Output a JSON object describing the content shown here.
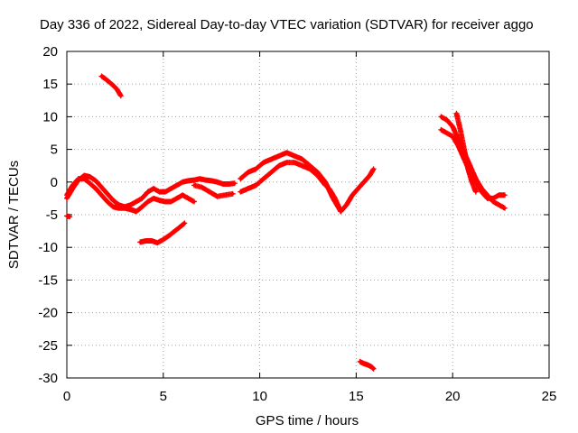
{
  "chart_data": {
    "type": "scatter",
    "title": "Day 336 of 2022, Sidereal Day-to-day VTEC variation (SDTVAR) for receiver aggo",
    "xlabel": "GPS time / hours",
    "ylabel": "SDTVAR / TECUs",
    "xlim": [
      0,
      25
    ],
    "ylim": [
      -30,
      20
    ],
    "grid": true,
    "x_ticks": [
      "0",
      "5",
      "10",
      "15",
      "20",
      "25"
    ],
    "y_ticks": [
      "20",
      "15",
      "10",
      "5",
      "0",
      "-5",
      "-10",
      "-15",
      "-20",
      "-25",
      "-30"
    ],
    "marker": "+",
    "color": "#ff0000",
    "series": [
      {
        "name": "arc-main-upper",
        "x": [
          0.0,
          0.3,
          0.6,
          0.9,
          1.2,
          1.5,
          1.8,
          2.1,
          2.4,
          2.7,
          3.0,
          3.3,
          3.6,
          3.9,
          4.2,
          4.5,
          4.8,
          5.1,
          5.4,
          5.7,
          6.0,
          6.3,
          6.6,
          6.9,
          7.2,
          7.5,
          7.8,
          8.1,
          8.4,
          8.7
        ],
        "y": [
          -2.5,
          -1.0,
          0.3,
          1.0,
          0.8,
          0.2,
          -0.8,
          -1.8,
          -2.8,
          -3.5,
          -3.8,
          -3.5,
          -3.0,
          -2.5,
          -1.5,
          -1.0,
          -1.5,
          -1.5,
          -1.0,
          -0.5,
          0.0,
          0.2,
          0.3,
          0.5,
          0.3,
          0.2,
          0.0,
          -0.3,
          -0.3,
          -0.2
        ]
      },
      {
        "name": "arc-main-lower",
        "x": [
          0.0,
          0.3,
          0.6,
          0.9,
          1.2,
          1.5,
          1.8,
          2.1,
          2.4,
          2.7,
          3.0,
          3.3,
          3.6,
          3.9,
          4.2,
          4.5,
          4.8,
          5.1,
          5.4,
          5.7,
          6.0,
          6.3,
          6.6
        ],
        "y": [
          -2.0,
          -0.5,
          0.5,
          0.5,
          -0.2,
          -1.0,
          -2.0,
          -3.0,
          -3.8,
          -4.0,
          -4.0,
          -4.2,
          -4.5,
          -3.8,
          -3.0,
          -2.5,
          -2.8,
          -3.0,
          -3.0,
          -2.5,
          -2.0,
          -2.5,
          -3.0
        ]
      },
      {
        "name": "arc-short-left",
        "x": [
          0.0,
          0.15
        ],
        "y": [
          -5.2,
          -5.3
        ]
      },
      {
        "name": "arc-high",
        "x": [
          1.8,
          2.0,
          2.2,
          2.4,
          2.6,
          2.8
        ],
        "y": [
          16.2,
          15.8,
          15.3,
          14.8,
          14.2,
          13.2
        ]
      },
      {
        "name": "arc-low",
        "x": [
          3.8,
          4.1,
          4.4,
          4.7,
          5.0,
          5.3,
          5.6,
          5.9,
          6.1
        ],
        "y": [
          -9.2,
          -9.0,
          -9.0,
          -9.3,
          -8.8,
          -8.2,
          -7.5,
          -6.8,
          -6.3
        ]
      },
      {
        "name": "arc-mid-a",
        "x": [
          6.6,
          7.0,
          7.4,
          7.8,
          8.2,
          8.6
        ],
        "y": [
          -0.5,
          -0.8,
          -1.5,
          -2.2,
          -2.0,
          -1.8
        ]
      },
      {
        "name": "arc-mid-b",
        "x": [
          9.0,
          9.4,
          9.8,
          10.2,
          10.6,
          11.0,
          11.4,
          11.8,
          12.2,
          12.6,
          13.0,
          13.4,
          13.8,
          14.2
        ],
        "y": [
          0.5,
          1.5,
          2.0,
          3.0,
          3.5,
          4.0,
          4.5,
          4.0,
          3.5,
          2.5,
          1.5,
          0.0,
          -2.5,
          -4.5
        ]
      },
      {
        "name": "arc-mid-c",
        "x": [
          9.0,
          9.4,
          9.8,
          10.2,
          10.6,
          11.0,
          11.4,
          11.8,
          12.2,
          12.6,
          13.0,
          13.4
        ],
        "y": [
          -1.5,
          -1.0,
          -0.5,
          0.5,
          1.5,
          2.5,
          3.0,
          3.0,
          2.5,
          2.0,
          1.0,
          -0.5
        ]
      },
      {
        "name": "arc-mid-d",
        "x": [
          13.6,
          13.9,
          14.2,
          14.5,
          14.8,
          15.1,
          15.4,
          15.7,
          15.9
        ],
        "y": [
          -1.0,
          -2.5,
          -4.5,
          -3.5,
          -2.0,
          -1.0,
          0.0,
          1.0,
          2.0
        ]
      },
      {
        "name": "arc-bottom",
        "x": [
          15.2,
          15.4,
          15.6,
          15.8,
          15.9
        ],
        "y": [
          -27.5,
          -27.8,
          -28.0,
          -28.3,
          -28.6
        ]
      },
      {
        "name": "arc-right-a",
        "x": [
          19.4,
          19.7,
          20.0,
          20.3,
          20.6,
          20.9,
          21.2,
          21.5,
          21.8,
          22.1,
          22.4,
          22.7
        ],
        "y": [
          10.0,
          9.5,
          8.5,
          6.5,
          4.5,
          2.5,
          0.5,
          -1.0,
          -2.0,
          -3.0,
          -3.5,
          -4.0
        ]
      },
      {
        "name": "arc-right-b",
        "x": [
          19.4,
          19.7,
          20.0,
          20.3,
          20.6,
          20.9,
          21.2,
          21.5,
          21.8,
          22.1,
          22.4,
          22.7
        ],
        "y": [
          8.0,
          7.5,
          7.0,
          5.5,
          3.5,
          1.5,
          0.0,
          -1.5,
          -2.5,
          -2.5,
          -2.0,
          -2.0
        ]
      },
      {
        "name": "arc-right-c",
        "x": [
          20.2,
          20.4,
          20.6,
          20.8,
          21.0,
          21.2
        ],
        "y": [
          10.5,
          8.0,
          5.0,
          2.0,
          0.0,
          -1.5
        ]
      }
    ]
  }
}
